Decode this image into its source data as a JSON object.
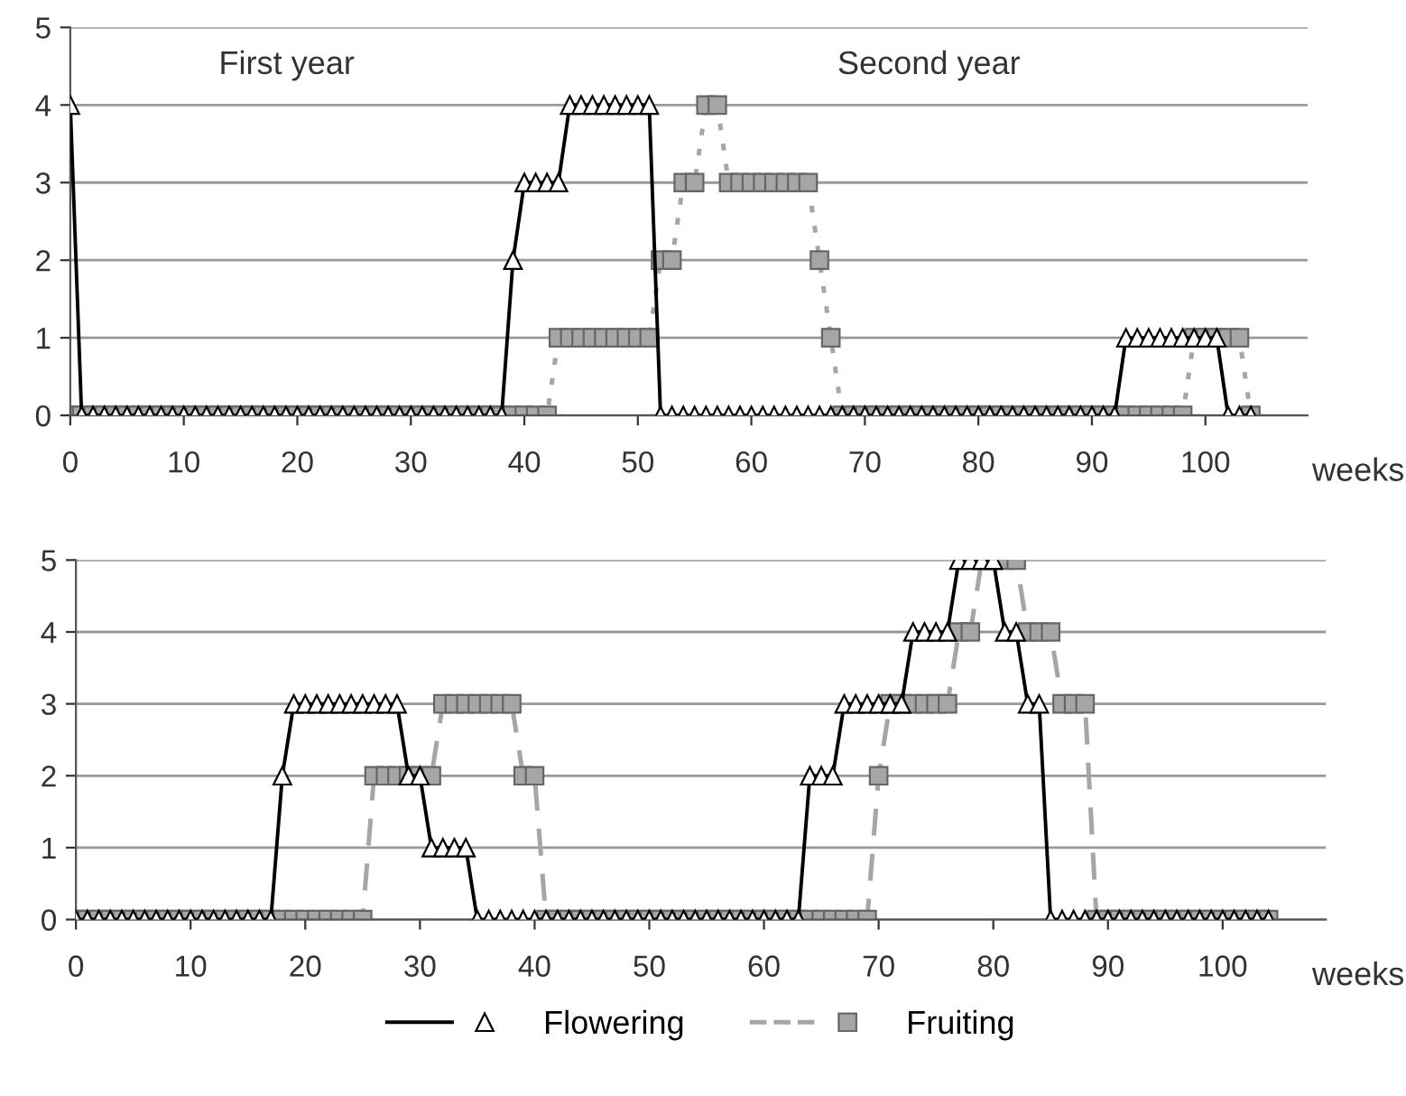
{
  "chart_data": [
    {
      "type": "line",
      "xlabel": "weeks",
      "annotations": [
        "First year",
        "Second year"
      ],
      "x": [
        0,
        1,
        2,
        3,
        4,
        5,
        6,
        7,
        8,
        9,
        10,
        11,
        12,
        13,
        14,
        15,
        16,
        17,
        18,
        19,
        20,
        21,
        22,
        23,
        24,
        25,
        26,
        27,
        28,
        29,
        30,
        31,
        32,
        33,
        34,
        35,
        36,
        37,
        38,
        39,
        40,
        41,
        42,
        43,
        44,
        45,
        46,
        47,
        48,
        49,
        50,
        51,
        52,
        53,
        54,
        55,
        56,
        57,
        58,
        59,
        60,
        61,
        62,
        63,
        64,
        65,
        66,
        67,
        68,
        69,
        70,
        71,
        72,
        73,
        74,
        75,
        76,
        77,
        78,
        79,
        80,
        81,
        82,
        83,
        84,
        85,
        86,
        87,
        88,
        89,
        90,
        91,
        92,
        93,
        94,
        95,
        96,
        97,
        98,
        99,
        100,
        101,
        102,
        103,
        104
      ],
      "series": [
        {
          "color": "#000000",
          "marker": "triangle",
          "line_style": "solid",
          "values": [
            4,
            0,
            0,
            0,
            0,
            0,
            0,
            0,
            0,
            0,
            0,
            0,
            0,
            0,
            0,
            0,
            0,
            0,
            0,
            0,
            0,
            0,
            0,
            0,
            0,
            0,
            0,
            0,
            0,
            0,
            0,
            0,
            0,
            0,
            0,
            0,
            0,
            0,
            0,
            2,
            3,
            3,
            3,
            3,
            4,
            4,
            4,
            4,
            4,
            4,
            4,
            4,
            0,
            0,
            0,
            0,
            0,
            0,
            0,
            0,
            0,
            0,
            0,
            0,
            0,
            0,
            0,
            0,
            0,
            0,
            0,
            0,
            0,
            0,
            0,
            0,
            0,
            0,
            0,
            0,
            0,
            0,
            0,
            0,
            0,
            0,
            0,
            0,
            0,
            0,
            0,
            0,
            0,
            1,
            1,
            1,
            1,
            1,
            1,
            1,
            1,
            1,
            0,
            0,
            0
          ]
        },
        {
          "color": "#a6a6a6",
          "marker": "square",
          "line_style": "dotted",
          "values": [
            0,
            0,
            0,
            0,
            0,
            0,
            0,
            0,
            0,
            0,
            0,
            0,
            0,
            0,
            0,
            0,
            0,
            0,
            0,
            0,
            0,
            0,
            0,
            0,
            0,
            0,
            0,
            0,
            0,
            0,
            0,
            0,
            0,
            0,
            0,
            0,
            0,
            0,
            0,
            0,
            0,
            0,
            0,
            1,
            1,
            1,
            1,
            1,
            1,
            1,
            1,
            1,
            2,
            2,
            3,
            3,
            4,
            4,
            3,
            3,
            3,
            3,
            3,
            3,
            3,
            3,
            2,
            1,
            0,
            0,
            0,
            0,
            0,
            0,
            0,
            0,
            0,
            0,
            0,
            0,
            0,
            0,
            0,
            0,
            0,
            0,
            0,
            0,
            0,
            0,
            0,
            0,
            0,
            0,
            0,
            0,
            0,
            0,
            0,
            1,
            1,
            1,
            1,
            1,
            0
          ]
        }
      ],
      "xlim": [
        0,
        109
      ],
      "xticks": [
        0,
        10,
        20,
        30,
        40,
        50,
        60,
        70,
        80,
        90,
        100
      ],
      "ylim": [
        0,
        5
      ],
      "yticks": [
        0,
        1,
        2,
        3,
        4,
        5
      ],
      "grid": "y",
      "legend": false
    },
    {
      "type": "line",
      "xlabel": "weeks",
      "x": [
        0,
        1,
        2,
        3,
        4,
        5,
        6,
        7,
        8,
        9,
        10,
        11,
        12,
        13,
        14,
        15,
        16,
        17,
        18,
        19,
        20,
        21,
        22,
        23,
        24,
        25,
        26,
        27,
        28,
        29,
        30,
        31,
        32,
        33,
        34,
        35,
        36,
        37,
        38,
        39,
        40,
        41,
        42,
        43,
        44,
        45,
        46,
        47,
        48,
        49,
        50,
        51,
        52,
        53,
        54,
        55,
        56,
        57,
        58,
        59,
        60,
        61,
        62,
        63,
        64,
        65,
        66,
        67,
        68,
        69,
        70,
        71,
        72,
        73,
        74,
        75,
        76,
        77,
        78,
        79,
        80,
        81,
        82,
        83,
        84,
        85,
        86,
        87,
        88,
        89,
        90,
        91,
        92,
        93,
        94,
        95,
        96,
        97,
        98,
        99,
        100,
        101,
        102,
        103,
        104
      ],
      "series": [
        {
          "name": "Flowering",
          "color": "#000000",
          "marker": "triangle",
          "line_style": "solid",
          "values": [
            0,
            0,
            0,
            0,
            0,
            0,
            0,
            0,
            0,
            0,
            0,
            0,
            0,
            0,
            0,
            0,
            0,
            0,
            2,
            3,
            3,
            3,
            3,
            3,
            3,
            3,
            3,
            3,
            3,
            2,
            2,
            1,
            1,
            1,
            1,
            0,
            0,
            0,
            0,
            0,
            0,
            0,
            0,
            0,
            0,
            0,
            0,
            0,
            0,
            0,
            0,
            0,
            0,
            0,
            0,
            0,
            0,
            0,
            0,
            0,
            0,
            0,
            0,
            0,
            2,
            2,
            2,
            3,
            3,
            3,
            3,
            3,
            3,
            4,
            4,
            4,
            4,
            5,
            5,
            5,
            5,
            4,
            4,
            3,
            3,
            0,
            0,
            0,
            0,
            0,
            0,
            0,
            0,
            0,
            0,
            0,
            0,
            0,
            0,
            0,
            0,
            0,
            0,
            0,
            0
          ]
        },
        {
          "name": "Fruiting",
          "color": "#a6a6a6",
          "marker": "square",
          "line_style": "dashed",
          "values": [
            0,
            0,
            0,
            0,
            0,
            0,
            0,
            0,
            0,
            0,
            0,
            0,
            0,
            0,
            0,
            0,
            0,
            0,
            0,
            0,
            0,
            0,
            0,
            0,
            0,
            0,
            2,
            2,
            2,
            2,
            2,
            2,
            3,
            3,
            3,
            3,
            3,
            3,
            3,
            2,
            2,
            0,
            0,
            0,
            0,
            0,
            0,
            0,
            0,
            0,
            0,
            0,
            0,
            0,
            0,
            0,
            0,
            0,
            0,
            0,
            0,
            0,
            0,
            0,
            0,
            0,
            0,
            0,
            0,
            0,
            2,
            3,
            3,
            3,
            3,
            3,
            3,
            4,
            4,
            5,
            5,
            5,
            5,
            4,
            4,
            4,
            3,
            3,
            3,
            0,
            0,
            0,
            0,
            0,
            0,
            0,
            0,
            0,
            0,
            0,
            0,
            0,
            0,
            0,
            0
          ]
        }
      ],
      "xlim": [
        0,
        109
      ],
      "xticks": [
        0,
        10,
        20,
        30,
        40,
        50,
        60,
        70,
        80,
        90,
        100
      ],
      "ylim": [
        0,
        5
      ],
      "yticks": [
        0,
        1,
        2,
        3,
        4,
        5
      ],
      "grid": "y",
      "legend": "bottom"
    }
  ]
}
